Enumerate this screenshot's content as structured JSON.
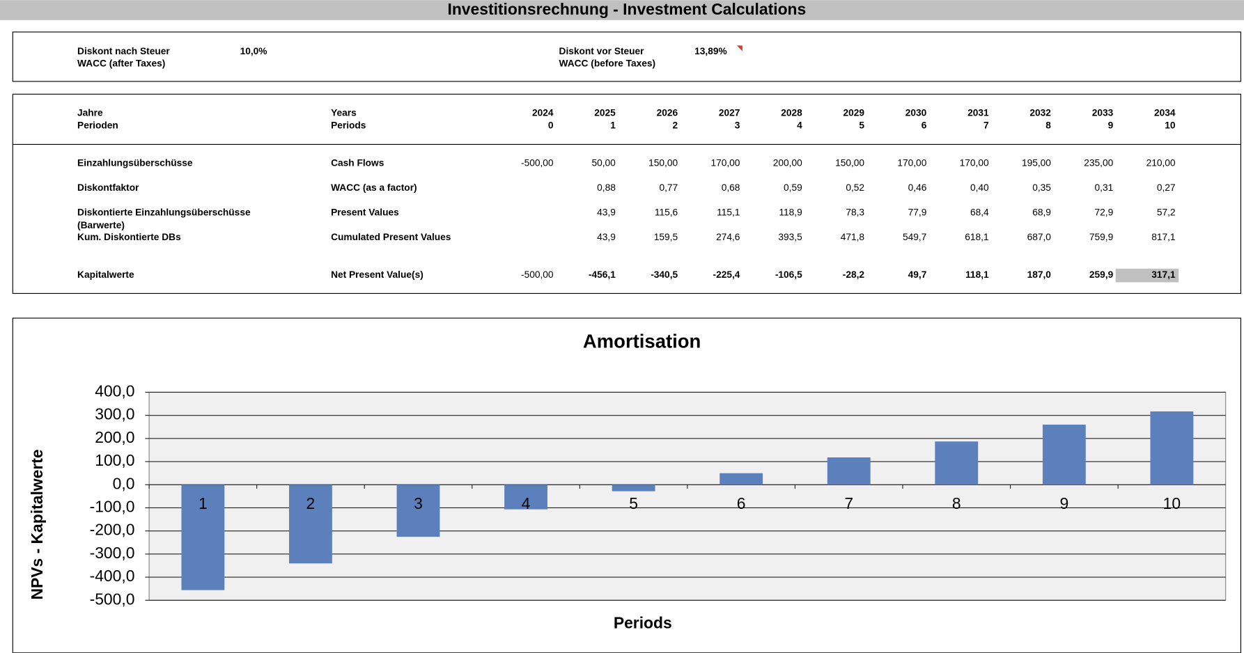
{
  "header": {
    "title": "Investitionsrechnung - Investment Calculations"
  },
  "parameters": [
    {
      "label_de": "Diskont nach Steuer",
      "label_en": "WACC (after Taxes)",
      "value": "10,0%"
    },
    {
      "label_de": "Diskont vor Steuer",
      "label_en": "WACC (before Taxes)",
      "value": "13,89%"
    }
  ],
  "table": {
    "header": [
      {
        "de": "Jahre",
        "en": "Years",
        "values": [
          "2024",
          "2025",
          "2026",
          "2027",
          "2028",
          "2029",
          "2030",
          "2031",
          "2032",
          "2033",
          "2034"
        ]
      },
      {
        "de": "Perioden",
        "en": "Periods",
        "values": [
          "0",
          "1",
          "2",
          "3",
          "4",
          "5",
          "6",
          "7",
          "8",
          "9",
          "10"
        ]
      }
    ],
    "rows": [
      {
        "de": "Einzahlungsüberschüsse",
        "en": "Cash Flows",
        "values": [
          "-500,00",
          "50,00",
          "150,00",
          "170,00",
          "200,00",
          "150,00",
          "170,00",
          "170,00",
          "195,00",
          "235,00",
          "210,00"
        ]
      },
      {
        "de": "Diskontfaktor",
        "en": "WACC (as a factor)",
        "values": [
          null,
          "0,88",
          "0,77",
          "0,68",
          "0,59",
          "0,52",
          "0,46",
          "0,40",
          "0,35",
          "0,31",
          "0,27"
        ]
      },
      {
        "de": "Diskontierte Einzahlungsüberschüsse",
        "de2": "(Barwerte)",
        "en": "Present Values",
        "values": [
          null,
          "43,9",
          "115,6",
          "115,1",
          "118,9",
          "78,3",
          "77,9",
          "68,4",
          "68,9",
          "72,9",
          "57,2"
        ]
      },
      {
        "de": "Kum. Diskontierte DBs",
        "en": "Cumulated Present Values",
        "values": [
          null,
          "43,9",
          "159,5",
          "274,6",
          "393,5",
          "471,8",
          "549,7",
          "618,1",
          "687,0",
          "759,9",
          "817,1"
        ]
      },
      {
        "de": "Kapitalwerte",
        "en": "Net Present Value(s)",
        "values": [
          "-500,00",
          "-456,1",
          "-340,5",
          "-225,4",
          "-106,5",
          "-28,2",
          "49,7",
          "118,1",
          "187,0",
          "259,9",
          "317,1"
        ]
      }
    ]
  },
  "chart_data": {
    "type": "bar",
    "title": "Amortisation",
    "x_label": "Periods",
    "y_label": "NPVs - Kapitalwerte",
    "categories": [
      "1",
      "2",
      "3",
      "4",
      "5",
      "6",
      "7",
      "8",
      "9",
      "10"
    ],
    "values": [
      -456.1,
      -340.5,
      -225.4,
      -106.5,
      -28.2,
      49.7,
      118.1,
      187.0,
      259.9,
      317.1
    ],
    "color": "#5b80bb",
    "grid": true,
    "ylim": [
      -500,
      400
    ],
    "yticks": [
      {
        "value": -500,
        "label": "-500,0"
      },
      {
        "value": -400,
        "label": "-400,0"
      },
      {
        "value": -300,
        "label": "-300,0"
      },
      {
        "value": -200,
        "label": "-200,0"
      },
      {
        "value": -100,
        "label": "-100,0"
      },
      {
        "value": 0,
        "label": "0,0"
      },
      {
        "value": 100,
        "label": "100,0"
      },
      {
        "value": 200,
        "label": "200,0"
      },
      {
        "value": 300,
        "label": "300,0"
      },
      {
        "value": 400,
        "label": "400,0"
      }
    ]
  }
}
